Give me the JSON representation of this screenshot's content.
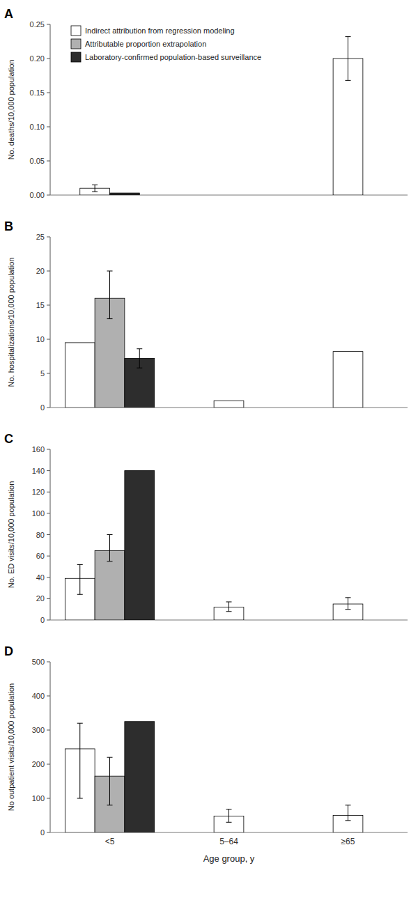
{
  "chart_data": [
    {
      "type": "bar",
      "title": "A",
      "ylabel": "No. deaths/10,000 population",
      "categories": [
        "<5",
        "5–64",
        "≥65"
      ],
      "series": [
        {
          "name": "Indirect attribution from regression modeling",
          "color": "#ffffff",
          "values": [
            0.01,
            null,
            0.2
          ],
          "error_low": [
            0.005,
            null,
            0.168
          ],
          "error_high": [
            0.015,
            null,
            0.232
          ]
        },
        {
          "name": "Attributable proportion extrapolation",
          "color": "#b0b0b0",
          "values": [
            null,
            null,
            null
          ],
          "error_low": [
            null,
            null,
            null
          ],
          "error_high": [
            null,
            null,
            null
          ]
        },
        {
          "name": "Laboratory-confirmed population-based surveillance",
          "color": "#2d2d2d",
          "values": [
            0.003,
            null,
            null
          ],
          "error_low": [
            null,
            null,
            null
          ],
          "error_high": [
            null,
            null,
            null
          ]
        }
      ],
      "ylim": [
        0,
        0.25
      ],
      "yticks": [
        {
          "value": 0,
          "label": "0.00"
        },
        0.05,
        {
          "value": 0.1,
          "label": "0.10"
        },
        0.15,
        {
          "value": 0.2,
          "label": "0.20"
        },
        0.25
      ],
      "grid": false,
      "legend": "upper left",
      "tick_labels": "y"
    },
    {
      "type": "bar",
      "title": "B",
      "ylabel": "No. hospitalizations/10,000 population",
      "categories": [
        "<5",
        "5–64",
        "≥65"
      ],
      "series": [
        {
          "name": "Indirect attribution from regression modeling",
          "color": "#ffffff",
          "values": [
            9.5,
            1.0,
            8.2
          ],
          "error_low": [
            null,
            null,
            null
          ],
          "error_high": [
            null,
            null,
            null
          ]
        },
        {
          "name": "Attributable proportion extrapolation",
          "color": "#b0b0b0",
          "values": [
            16.0,
            null,
            null
          ],
          "error_low": [
            13.0,
            null,
            null
          ],
          "error_high": [
            20.0,
            null,
            null
          ]
        },
        {
          "name": "Laboratory-confirmed population-based surveillance",
          "color": "#2d2d2d",
          "values": [
            7.2,
            null,
            null
          ],
          "error_low": [
            5.8,
            null,
            null
          ],
          "error_high": [
            8.6,
            null,
            null
          ]
        }
      ],
      "ylim": [
        0,
        25
      ],
      "yticks": [
        0,
        5,
        10,
        15,
        20,
        25
      ],
      "grid": false,
      "legend": false,
      "tick_labels": "y"
    },
    {
      "type": "bar",
      "title": "C",
      "ylabel": "No. ED visits/10,000 population",
      "categories": [
        "<5",
        "5–64",
        "≥65"
      ],
      "series": [
        {
          "name": "Indirect attribution from regression modeling",
          "color": "#ffffff",
          "values": [
            39.0,
            12.0,
            15.0
          ],
          "error_low": [
            24.0,
            8.0,
            10.0
          ],
          "error_high": [
            52.0,
            17.0,
            21.0
          ]
        },
        {
          "name": "Attributable proportion extrapolation",
          "color": "#b0b0b0",
          "values": [
            65.0,
            null,
            null
          ],
          "error_low": [
            55.0,
            null,
            null
          ],
          "error_high": [
            80.0,
            null,
            null
          ]
        },
        {
          "name": "Laboratory-confirmed population-based surveillance",
          "color": "#2d2d2d",
          "values": [
            140.0,
            null,
            null
          ],
          "error_low": [
            null,
            null,
            null
          ],
          "error_high": [
            null,
            null,
            null
          ]
        }
      ],
      "ylim": [
        0,
        160
      ],
      "yticks": [
        0,
        20,
        40,
        60,
        80,
        100,
        120,
        140,
        160
      ],
      "grid": false,
      "legend": false,
      "tick_labels": "y"
    },
    {
      "type": "bar",
      "title": "D",
      "ylabel": "No outpatient visits/10,000 population",
      "xlabel": "Age group, y",
      "categories": [
        "<5",
        "5–64",
        "≥65"
      ],
      "series": [
        {
          "name": "Indirect attribution from regression modeling",
          "color": "#ffffff",
          "values": [
            245.0,
            48.0,
            50.0
          ],
          "error_low": [
            100.0,
            30.0,
            35.0
          ],
          "error_high": [
            320.0,
            68.0,
            80.0
          ]
        },
        {
          "name": "Attributable proportion extrapolation",
          "color": "#b0b0b0",
          "values": [
            165.0,
            null,
            null
          ],
          "error_low": [
            80.0,
            null,
            null
          ],
          "error_high": [
            220.0,
            null,
            null
          ]
        },
        {
          "name": "Laboratory-confirmed population-based surveillance",
          "color": "#2d2d2d",
          "values": [
            325.0,
            null,
            null
          ],
          "error_low": [
            null,
            null,
            null
          ],
          "error_high": [
            null,
            null,
            null
          ]
        }
      ],
      "ylim": [
        0,
        500
      ],
      "yticks": [
        0,
        100,
        200,
        300,
        400,
        500
      ],
      "grid": false,
      "legend": false,
      "tick_labels": true
    }
  ]
}
